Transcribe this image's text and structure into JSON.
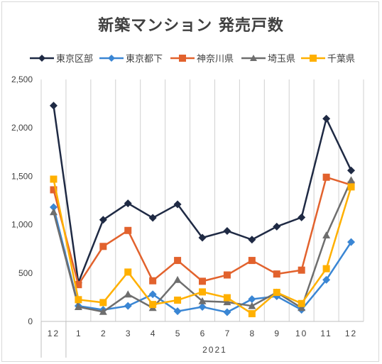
{
  "chart_data": {
    "type": "line",
    "title": "新築マンション 発売戸数",
    "categories": [
      "12",
      "1",
      "2",
      "3",
      "4",
      "5",
      "6",
      "7",
      "8",
      "9",
      "10",
      "11",
      "12"
    ],
    "year_group_label": "2021",
    "ylim": [
      0,
      2500
    ],
    "yticks": [
      "0",
      "500",
      "1,000",
      "1,500",
      "2,000",
      "2,500"
    ],
    "ytick_values": [
      0,
      500,
      1000,
      1500,
      2000,
      2500
    ],
    "grid": "vertical",
    "legend_position": "top",
    "series": [
      {
        "name": "東京区部",
        "color": "#1f2a44",
        "marker": "diamond",
        "values": [
          2230,
          400,
          1050,
          1220,
          1070,
          1210,
          865,
          935,
          845,
          980,
          1075,
          2095,
          1560
        ]
      },
      {
        "name": "東京都下",
        "color": "#3a86d4",
        "marker": "diamond",
        "values": [
          1180,
          160,
          120,
          160,
          280,
          105,
          150,
          95,
          230,
          260,
          120,
          430,
          820
        ]
      },
      {
        "name": "神奈川県",
        "color": "#e2622d",
        "marker": "square",
        "values": [
          1360,
          380,
          775,
          940,
          420,
          630,
          415,
          480,
          630,
          490,
          530,
          1490,
          1410
        ]
      },
      {
        "name": "埼玉県",
        "color": "#6e6e6e",
        "marker": "triangle",
        "values": [
          1130,
          150,
          100,
          280,
          140,
          430,
          210,
          200,
          160,
          300,
          140,
          890,
          1460
        ]
      },
      {
        "name": "千葉県",
        "color": "#ffb000",
        "marker": "square",
        "values": [
          1470,
          225,
          195,
          510,
          175,
          220,
          305,
          245,
          80,
          300,
          185,
          545,
          1390
        ]
      }
    ]
  }
}
